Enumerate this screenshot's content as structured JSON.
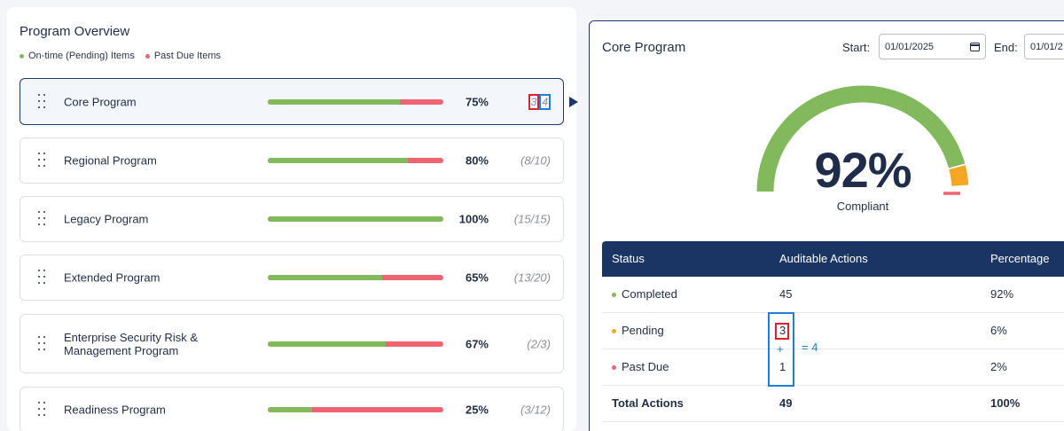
{
  "overview": {
    "title": "Program Overview",
    "legend": [
      {
        "label": "On-time (Pending) Items",
        "color": "#82b95d"
      },
      {
        "label": "Past Due Items",
        "color": "#ee6473"
      }
    ]
  },
  "programs": [
    {
      "name": "Core Program",
      "pct": "75%",
      "progress": 0.75,
      "count_a": "3",
      "count_b": "4",
      "selected": true
    },
    {
      "name": "Regional Program",
      "pct": "80%",
      "progress": 0.8,
      "count": "(8/10)"
    },
    {
      "name": "Legacy Program",
      "pct": "100%",
      "progress": 1.0,
      "count": "(15/15)"
    },
    {
      "name": "Extended Program",
      "pct": "65%",
      "progress": 0.65,
      "count": "(13/20)"
    },
    {
      "name": "Enterprise Security Risk & Management Program",
      "pct": "67%",
      "progress": 0.67,
      "count": "(2/3)"
    },
    {
      "name": "Readiness Program",
      "pct": "25%",
      "progress": 0.25,
      "count": "(3/12)"
    }
  ],
  "detail": {
    "title": "Core Program",
    "start_label": "Start:",
    "start_value": "01/01/2025",
    "end_label": "End:",
    "end_value": "01/01/2",
    "gauge": {
      "value": "92%",
      "label": "Compliant",
      "completed": 0.92,
      "pending": 0.06,
      "past_due": 0.02
    },
    "table": {
      "headers": [
        "Status",
        "Auditable Actions",
        "Percentage"
      ],
      "rows": [
        {
          "status": "Completed",
          "actions": "45",
          "pct": "92%",
          "color": "#82b95d"
        },
        {
          "status": "Pending",
          "actions": "3",
          "pct": "6%",
          "color": "#f5a623"
        },
        {
          "status": "Past Due",
          "actions": "1",
          "pct": "2%",
          "color": "#ee6473"
        }
      ],
      "total": {
        "label": "Total Actions",
        "actions": "49",
        "pct": "100%"
      }
    },
    "annotation": {
      "plus": "+",
      "equals": "= 4"
    }
  }
}
